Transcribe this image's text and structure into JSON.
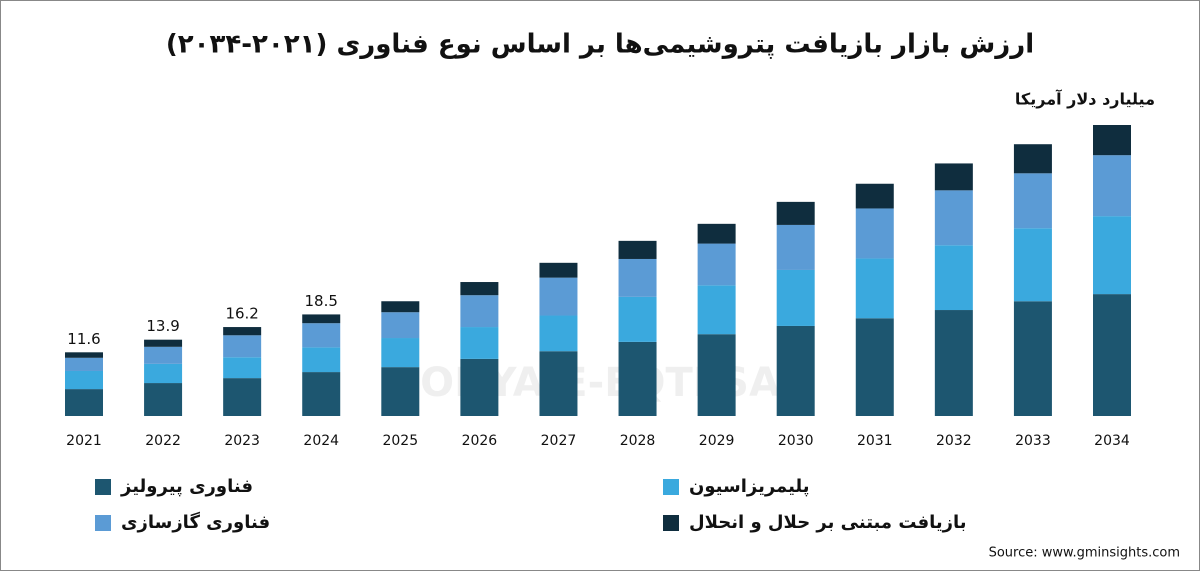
{
  "chart_data": {
    "type": "stacked-bar",
    "title": "ارزش بازار بازیافت پتروشیمی‌ها بر اساس نوع فناوری (۲۰۲۱-۲۰۳۴)",
    "subtitle": "میلیارد دلار آمریکا",
    "categories": [
      "2021",
      "2022",
      "2023",
      "2024",
      "2025",
      "2026",
      "2027",
      "2028",
      "2029",
      "2030",
      "2031",
      "2032",
      "2033",
      "2034"
    ],
    "series": [
      {
        "name": "فناوری پیرولیز",
        "color": "#1d5670",
        "values": [
          4.9,
          6.0,
          6.9,
          8.0,
          8.9,
          10.4,
          11.8,
          13.5,
          14.9,
          16.4,
          17.8,
          19.3,
          20.9,
          22.2
        ]
      },
      {
        "name": "پلیمریزاسیون",
        "color": "#3aa9de",
        "values": [
          3.3,
          3.5,
          3.8,
          4.5,
          5.3,
          5.8,
          6.5,
          8.2,
          8.9,
          10.2,
          10.9,
          11.8,
          13.3,
          14.2
        ]
      },
      {
        "name": "فناوری گازسازی",
        "color": "#5b9bd5",
        "values": [
          2.4,
          3.1,
          4.0,
          4.4,
          4.7,
          5.8,
          6.9,
          6.9,
          7.6,
          8.2,
          9.1,
          10.0,
          10.0,
          11.1
        ]
      },
      {
        "name": "بازیافت مبتنی بر حلال و انحلال",
        "color": "#0f2d3e",
        "values": [
          1.0,
          1.3,
          1.5,
          1.6,
          2.0,
          2.4,
          2.7,
          3.3,
          3.6,
          4.2,
          4.5,
          4.9,
          5.3,
          5.5
        ]
      }
    ],
    "totals": [
      11.6,
      13.9,
      16.2,
      18.5,
      null,
      null,
      null,
      null,
      null,
      null,
      null,
      null,
      null,
      null
    ],
    "watermark": "DONYA-E-EQTESAD",
    "source": "Source: www.gminsights.com"
  }
}
